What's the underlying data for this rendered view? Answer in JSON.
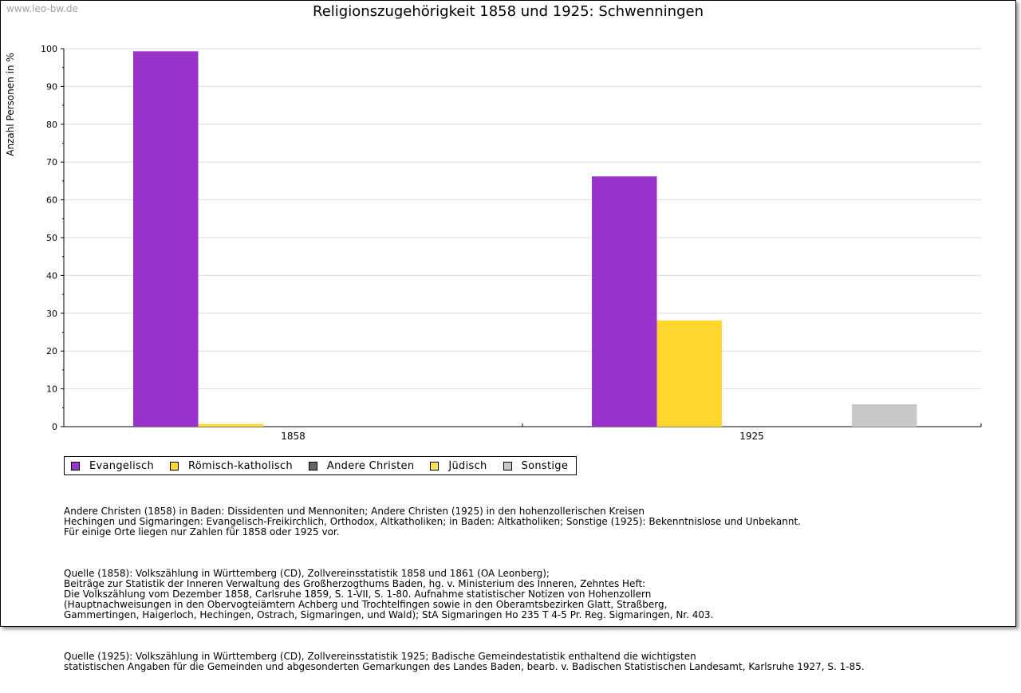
{
  "watermark": "www.leo-bw.de",
  "chart_data": {
    "type": "bar",
    "title": "Religionszugehörigkeit 1858 und 1925: Schwenningen",
    "xlabel": "",
    "ylabel": "Anzahl Personen in %",
    "ylim": [
      0,
      100
    ],
    "yticks": [
      0,
      10,
      20,
      30,
      40,
      50,
      60,
      70,
      80,
      90,
      100
    ],
    "categories": [
      "1858",
      "1925"
    ],
    "grid": true,
    "legend_position": "bottom",
    "series": [
      {
        "name": "Evangelisch",
        "color": "#9933cc",
        "values": [
          99.3,
          66.2
        ]
      },
      {
        "name": "Römisch-katholisch",
        "color": "#fdd62e",
        "values": [
          0.7,
          28.1
        ]
      },
      {
        "name": "Andere Christen",
        "color": "#666666",
        "values": [
          0,
          0
        ]
      },
      {
        "name": "Jüdisch",
        "color": "#ffdd55",
        "values": [
          0,
          0
        ]
      },
      {
        "name": "Sonstige",
        "color": "#c8c8c8",
        "values": [
          0,
          5.9
        ]
      }
    ]
  },
  "notes": {
    "p1": "Andere Christen (1858) in Baden: Dissidenten und Mennoniten; Andere Christen (1925) in den hohenzollerischen Kreisen\nHechingen und Sigmaringen: Evangelisch-Freikirchlich, Orthodox, Altkatholiken; in Baden: Altkatholiken; Sonstige (1925): Bekenntnislose und Unbekannt.\nFür einige Orte liegen nur Zahlen für 1858 oder 1925 vor.",
    "p2": "Quelle (1858): Volkszählung in Württemberg (CD), Zollvereinsstatistik 1858 und 1861 (OA Leonberg);\nBeiträge zur Statistik der Inneren Verwaltung des Großherzogthums Baden, hg. v. Ministerium des Inneren, Zehntes Heft:\nDie Volkszählung vom Dezember 1858, Carlsruhe 1859, S. 1-VII, S. 1-80. Aufnahme statistischer Notizen von Hohenzollern\n(Hauptnachweisungen in den Obervogteiämtern Achberg und Trochtelfingen sowie in den Oberamtsbezirken Glatt, Straßberg,\nGammertingen, Haigerloch, Hechingen, Ostrach, Sigmaringen, und Wald); StA Sigmaringen Ho 235 T 4-5 Pr. Reg. Sigmaringen, Nr. 403.",
    "p3": "Quelle (1925): Volkszählung in Württemberg (CD), Zollvereinsstatistik 1925; Badische Gemeindestatistik enthaltend die wichtigsten\nstatistischen Angaben für die Gemeinden und abgesonderten Gemarkungen des Landes Baden, bearb. v. Badischen Statistischen Landesamt, Karlsruhe 1927, S. 1-85."
  }
}
